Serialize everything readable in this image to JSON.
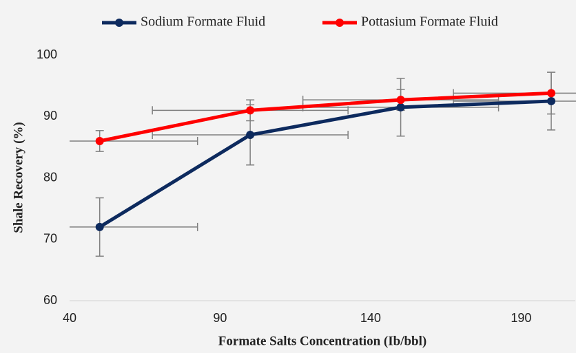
{
  "chart_data": {
    "type": "line",
    "x_label": "Formate Salts Concentration (Ib/bbl)",
    "y_label": "Shale Recovery (%)",
    "x": [
      50,
      100,
      150,
      200
    ],
    "series": [
      {
        "name": "Sodium Formate Fluid",
        "color": "#0d2a5e",
        "values": [
          72,
          87,
          91.5,
          92.5
        ],
        "y_errors": [
          4.75,
          4.9,
          4.7,
          4.7
        ],
        "x_errors": [
          32.5,
          32.5,
          32.5,
          32.5
        ]
      },
      {
        "name": "Pottasium Formate Fluid",
        "color": "#ff0000",
        "values": [
          86,
          91,
          92.7,
          93.8
        ],
        "y_errors": [
          1.7,
          1.7,
          1.7,
          3.4
        ],
        "x_errors": [
          32.5,
          32.5,
          32.5,
          32.5
        ]
      }
    ],
    "error_color": "#7f7f7f",
    "xlim": [
      40,
      208
    ],
    "xticks": [
      40,
      90,
      140,
      190
    ],
    "ylim": [
      60,
      100
    ],
    "yticks": [
      60,
      70,
      80,
      90,
      100
    ],
    "legend": "top"
  }
}
